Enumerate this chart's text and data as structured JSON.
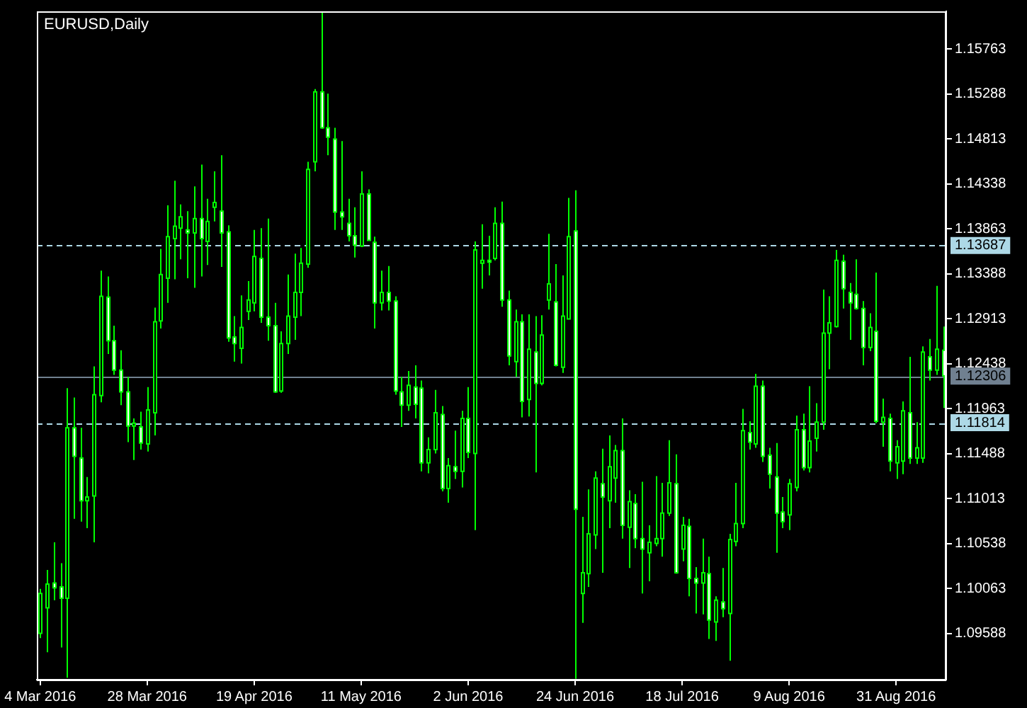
{
  "chart_data": {
    "type": "candlestick",
    "title": "EURUSD,Daily",
    "color": "#00ff00",
    "categories": [
      "4 Mar 2016",
      null,
      null,
      null,
      null,
      null,
      null,
      null,
      null,
      null,
      null,
      null,
      null,
      null,
      null,
      null,
      "28 Mar 2016",
      null,
      null,
      null,
      null,
      null,
      null,
      null,
      null,
      null,
      null,
      null,
      null,
      null,
      null,
      null,
      "19 Apr 2016",
      null,
      null,
      null,
      null,
      null,
      null,
      null,
      null,
      null,
      null,
      null,
      null,
      null,
      null,
      null,
      "11 May 2016",
      null,
      null,
      null,
      null,
      null,
      null,
      null,
      null,
      null,
      null,
      null,
      null,
      null,
      null,
      null,
      "2 Jun 2016",
      null,
      null,
      null,
      null,
      null,
      null,
      null,
      null,
      null,
      null,
      null,
      null,
      null,
      null,
      null,
      "24 Jun 2016",
      null,
      null,
      null,
      null,
      null,
      null,
      null,
      null,
      null,
      null,
      null,
      null,
      null,
      null,
      null,
      "18 Jul 2016",
      null,
      null,
      null,
      null,
      null,
      null,
      null,
      null,
      null,
      null,
      null,
      null,
      null,
      null,
      null,
      "9 Aug 2016",
      null,
      null,
      null,
      null,
      null,
      null,
      null,
      null,
      null,
      null,
      null,
      null,
      null,
      null,
      null,
      "31 Aug 2016",
      null,
      null,
      null,
      null,
      null,
      null,
      null
    ],
    "ohlc": [
      [
        1.0959,
        1.1006,
        1.0954,
        1.1001
      ],
      [
        1.0986,
        1.1026,
        1.0939,
        1.1011
      ],
      [
        1.1012,
        1.1055,
        1.0994,
        1.1007
      ],
      [
        1.1008,
        1.1033,
        1.0944,
        1.0996
      ],
      [
        1.0996,
        1.1218,
        1.0912,
        1.1176
      ],
      [
        1.1176,
        1.1208,
        1.108,
        1.1146
      ],
      [
        1.1144,
        1.1176,
        1.1077,
        1.1099
      ],
      [
        1.1099,
        1.1124,
        1.107,
        1.1103
      ],
      [
        1.1104,
        1.1241,
        1.1055,
        1.1211
      ],
      [
        1.121,
        1.1342,
        1.1203,
        1.1315
      ],
      [
        1.1314,
        1.1336,
        1.1254,
        1.1268
      ],
      [
        1.1268,
        1.1284,
        1.1232,
        1.1237
      ],
      [
        1.1237,
        1.1258,
        1.12,
        1.1214
      ],
      [
        1.1214,
        1.123,
        1.1161,
        1.1178
      ],
      [
        1.1178,
        1.1186,
        1.1142,
        1.1181
      ],
      [
        1.1177,
        1.1193,
        1.1153,
        1.116
      ],
      [
        1.1159,
        1.1219,
        1.1151,
        1.1195
      ],
      [
        1.1192,
        1.1303,
        1.1168,
        1.1288
      ],
      [
        1.1289,
        1.1365,
        1.1281,
        1.1338
      ],
      [
        1.1334,
        1.1411,
        1.1308,
        1.1378
      ],
      [
        1.1376,
        1.1437,
        1.1333,
        1.1389
      ],
      [
        1.1387,
        1.1412,
        1.1354,
        1.1399
      ],
      [
        1.1385,
        1.1405,
        1.1334,
        1.1382
      ],
      [
        1.1382,
        1.1431,
        1.1324,
        1.1397
      ],
      [
        1.1397,
        1.1454,
        1.1336,
        1.1376
      ],
      [
        1.1373,
        1.1418,
        1.1348,
        1.1394
      ],
      [
        1.1409,
        1.1447,
        1.1394,
        1.1414
      ],
      [
        1.1405,
        1.1464,
        1.1346,
        1.1382
      ],
      [
        1.1383,
        1.139,
        1.1267,
        1.1271
      ],
      [
        1.1272,
        1.1294,
        1.1246,
        1.1265
      ],
      [
        1.126,
        1.1316,
        1.1244,
        1.1282
      ],
      [
        1.1299,
        1.1331,
        1.129,
        1.1311
      ],
      [
        1.1308,
        1.1385,
        1.1299,
        1.1357
      ],
      [
        1.1355,
        1.1387,
        1.1287,
        1.1293
      ],
      [
        1.1293,
        1.1397,
        1.1268,
        1.1284
      ],
      [
        1.1284,
        1.1308,
        1.1213,
        1.1214
      ],
      [
        1.1215,
        1.1278,
        1.1213,
        1.1265
      ],
      [
        1.1265,
        1.1338,
        1.1254,
        1.1294
      ],
      [
        1.1293,
        1.136,
        1.1269,
        1.1319
      ],
      [
        1.1319,
        1.1366,
        1.1294,
        1.135
      ],
      [
        1.1349,
        1.1457,
        1.1345,
        1.1449
      ],
      [
        1.1457,
        1.1534,
        1.1447,
        1.1531
      ],
      [
        1.1531,
        1.1615,
        1.1492,
        1.1493
      ],
      [
        1.1493,
        1.1529,
        1.1464,
        1.1483
      ],
      [
        1.1481,
        1.1493,
        1.1385,
        1.1404
      ],
      [
        1.1404,
        1.1479,
        1.1385,
        1.1399
      ],
      [
        1.1392,
        1.1418,
        1.1373,
        1.1379
      ],
      [
        1.1379,
        1.1409,
        1.1356,
        1.1369
      ],
      [
        1.1368,
        1.1447,
        1.1367,
        1.1423
      ],
      [
        1.1423,
        1.1428,
        1.1374,
        1.1374
      ],
      [
        1.1372,
        1.1378,
        1.1281,
        1.1308
      ],
      [
        1.1308,
        1.1342,
        1.13,
        1.1319
      ],
      [
        1.1319,
        1.1347,
        1.13,
        1.131
      ],
      [
        1.131,
        1.1315,
        1.1211,
        1.1215
      ],
      [
        1.1214,
        1.123,
        1.1177,
        1.12
      ],
      [
        1.12,
        1.1236,
        1.1194,
        1.1221
      ],
      [
        1.1219,
        1.1242,
        1.1186,
        1.1201
      ],
      [
        1.1218,
        1.1226,
        1.113,
        1.1139
      ],
      [
        1.1139,
        1.1166,
        1.1128,
        1.1153
      ],
      [
        1.1153,
        1.1216,
        1.1149,
        1.1192
      ],
      [
        1.119,
        1.1199,
        1.1109,
        1.1112
      ],
      [
        1.1112,
        1.1144,
        1.1097,
        1.1136
      ],
      [
        1.1135,
        1.1173,
        1.1122,
        1.113
      ],
      [
        1.113,
        1.1194,
        1.1113,
        1.1186
      ],
      [
        1.1186,
        1.1219,
        1.1144,
        1.115
      ],
      [
        1.1149,
        1.1373,
        1.1068,
        1.1364
      ],
      [
        1.135,
        1.1391,
        1.1323,
        1.1353
      ],
      [
        1.1353,
        1.1379,
        1.1337,
        1.1351
      ],
      [
        1.1355,
        1.1409,
        1.1353,
        1.1392
      ],
      [
        1.1392,
        1.1415,
        1.1304,
        1.1311
      ],
      [
        1.1311,
        1.1321,
        1.1242,
        1.1252
      ],
      [
        1.1246,
        1.1301,
        1.123,
        1.1288
      ],
      [
        1.1288,
        1.1296,
        1.1187,
        1.1204
      ],
      [
        1.1206,
        1.1296,
        1.1188,
        1.1259
      ],
      [
        1.1256,
        1.1294,
        1.1129,
        1.1223
      ],
      [
        1.1223,
        1.1295,
        1.1221,
        1.1274
      ],
      [
        1.1311,
        1.1381,
        1.1301,
        1.1328
      ],
      [
        1.1309,
        1.1349,
        1.1241,
        1.1242
      ],
      [
        1.124,
        1.1337,
        1.1234,
        1.1294
      ],
      [
        1.1291,
        1.1419,
        1.1291,
        1.1378
      ],
      [
        1.1384,
        1.1427,
        1.0911,
        1.109
      ],
      [
        1.1001,
        1.1082,
        1.097,
        1.1023
      ],
      [
        1.1022,
        1.1111,
        1.1008,
        1.1064
      ],
      [
        1.1063,
        1.113,
        1.1048,
        1.1123
      ],
      [
        1.1117,
        1.1154,
        1.1023,
        1.1103
      ],
      [
        1.1099,
        1.1168,
        1.107,
        1.1135
      ],
      [
        1.1123,
        1.1158,
        1.1097,
        1.1152
      ],
      [
        1.1152,
        1.1186,
        1.1059,
        1.1073
      ],
      [
        1.1071,
        1.111,
        1.1028,
        1.1098
      ],
      [
        1.1096,
        1.1106,
        1.1049,
        1.1059
      ],
      [
        1.1059,
        1.1119,
        1.1001,
        1.1048
      ],
      [
        1.1044,
        1.1073,
        1.1014,
        1.1055
      ],
      [
        1.1054,
        1.1125,
        1.1051,
        1.1059
      ],
      [
        1.1059,
        1.1118,
        1.104,
        1.1086
      ],
      [
        1.1086,
        1.1163,
        1.1083,
        1.1118
      ],
      [
        1.1117,
        1.1148,
        1.1022,
        1.1023
      ],
      [
        1.1048,
        1.1082,
        1.1035,
        1.1073
      ],
      [
        1.1072,
        1.108,
        1.0998,
        1.1017
      ],
      [
        1.1017,
        1.1029,
        1.098,
        1.1012
      ],
      [
        1.1012,
        1.1059,
        1.0979,
        1.1023
      ],
      [
        1.1022,
        1.104,
        1.0953,
        1.0973
      ],
      [
        1.0971,
        1.0998,
        1.0951,
        1.0994
      ],
      [
        1.0992,
        1.1028,
        1.0976,
        1.0985
      ],
      [
        1.098,
        1.1064,
        1.093,
        1.1058
      ],
      [
        1.1056,
        1.1118,
        1.1051,
        1.1075
      ],
      [
        1.1075,
        1.1196,
        1.107,
        1.1173
      ],
      [
        1.1171,
        1.1183,
        1.1153,
        1.1161
      ],
      [
        1.1159,
        1.1233,
        1.1155,
        1.122
      ],
      [
        1.122,
        1.1226,
        1.114,
        1.1146
      ],
      [
        1.1147,
        1.1155,
        1.1112,
        1.1127
      ],
      [
        1.1124,
        1.116,
        1.1044,
        1.1086
      ],
      [
        1.1087,
        1.1103,
        1.107,
        1.1077
      ],
      [
        1.1084,
        1.1122,
        1.1068,
        1.1117
      ],
      [
        1.1113,
        1.1189,
        1.1109,
        1.1174
      ],
      [
        1.1174,
        1.1191,
        1.1131,
        1.1134
      ],
      [
        1.1134,
        1.122,
        1.1129,
        1.1162
      ],
      [
        1.1165,
        1.1202,
        1.1151,
        1.1182
      ],
      [
        1.1182,
        1.1322,
        1.1174,
        1.1276
      ],
      [
        1.1276,
        1.1315,
        1.1238,
        1.1287
      ],
      [
        1.1283,
        1.1364,
        1.1282,
        1.1353
      ],
      [
        1.1352,
        1.1359,
        1.1302,
        1.1323
      ],
      [
        1.1319,
        1.1329,
        1.1269,
        1.1308
      ],
      [
        1.1317,
        1.1354,
        1.1301,
        1.1302
      ],
      [
        1.1302,
        1.131,
        1.1242,
        1.1261
      ],
      [
        1.1261,
        1.1297,
        1.1257,
        1.1282
      ],
      [
        1.1278,
        1.134,
        1.1181,
        1.1183
      ],
      [
        1.1182,
        1.1207,
        1.1156,
        1.1187
      ],
      [
        1.1186,
        1.1191,
        1.113,
        1.1141
      ],
      [
        1.1139,
        1.1163,
        1.1122,
        1.1156
      ],
      [
        1.1141,
        1.1204,
        1.1127,
        1.1194
      ],
      [
        1.1192,
        1.1251,
        1.1138,
        1.1144
      ],
      [
        1.1144,
        1.1182,
        1.1138,
        1.1155
      ],
      [
        1.1144,
        1.1262,
        1.1139,
        1.1256
      ],
      [
        1.1251,
        1.127,
        1.1226,
        1.1237
      ],
      [
        1.1237,
        1.1326,
        1.1232,
        1.1259
      ],
      [
        1.1258,
        1.1283,
        1.1197,
        1.1231
      ]
    ],
    "ylim": [
      1.091,
      1.1616
    ],
    "yticks": [
      1.15763,
      1.15288,
      1.14813,
      1.14338,
      1.13863,
      1.13388,
      1.12913,
      1.12438,
      1.11963,
      1.11488,
      1.11013,
      1.10538,
      1.10063,
      1.09588
    ],
    "ref_lines": [
      {
        "axis": "y",
        "value": 1.13687,
        "label": "1.13687",
        "color": "#add8e6",
        "line_style": "dashed"
      },
      {
        "axis": "y",
        "value": 1.12306,
        "label": "1.12306",
        "color": "#708090",
        "line_style": "solid"
      },
      {
        "axis": "y",
        "value": 1.11814,
        "label": "1.11814",
        "color": "#add8e6",
        "line_style": "dashed"
      }
    ]
  }
}
